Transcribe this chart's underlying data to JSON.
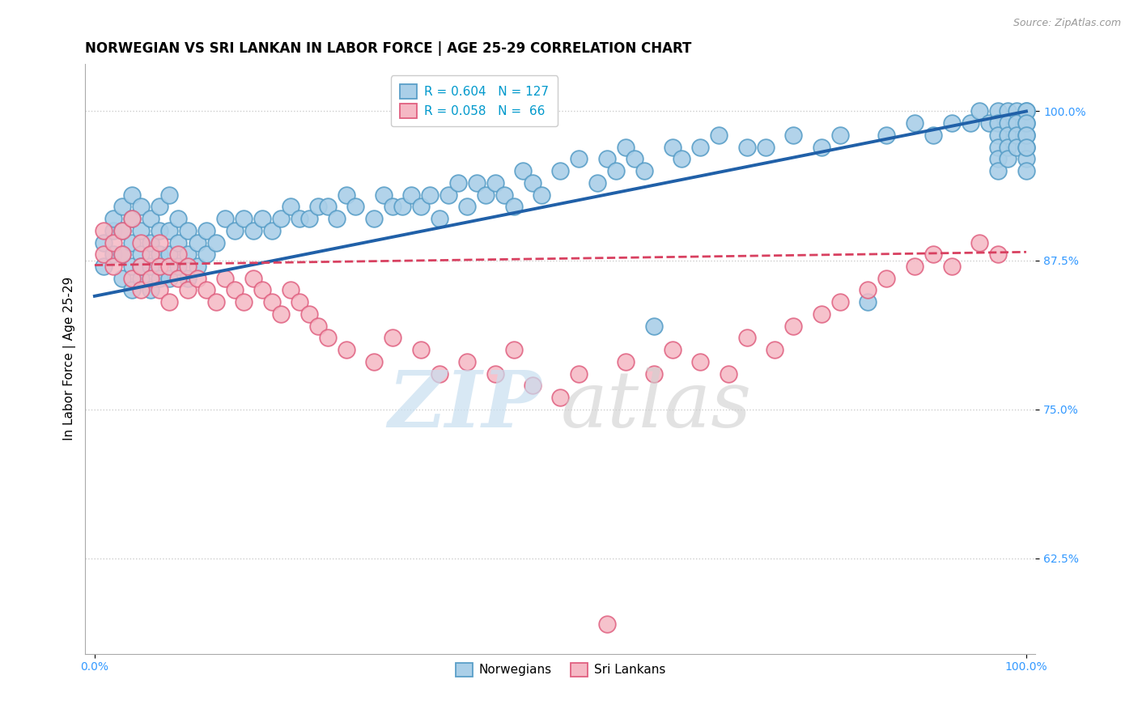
{
  "title": "NORWEGIAN VS SRI LANKAN IN LABOR FORCE | AGE 25-29 CORRELATION CHART",
  "source_text": "Source: ZipAtlas.com",
  "ylabel": "In Labor Force | Age 25-29",
  "xlim": [
    -0.01,
    1.01
  ],
  "ylim": [
    0.545,
    1.04
  ],
  "yticks": [
    0.625,
    0.75,
    0.875,
    1.0
  ],
  "ytick_labels": [
    "62.5%",
    "75.0%",
    "87.5%",
    "100.0%"
  ],
  "xticks": [
    0.0,
    1.0
  ],
  "xtick_labels": [
    "0.0%",
    "100.0%"
  ],
  "bottom_legend_labels": [
    "Norwegians",
    "Sri Lankans"
  ],
  "blue_R": "0.604",
  "blue_N": "127",
  "pink_R": "0.058",
  "pink_N": "66",
  "blue_color": "#aacfe8",
  "blue_edge": "#5a9fc8",
  "pink_color": "#f5b8c4",
  "pink_edge": "#e06080",
  "blue_line_color": "#2060a8",
  "pink_line_color": "#d84060",
  "title_fontsize": 12,
  "axis_label_fontsize": 11,
  "tick_fontsize": 10,
  "blue_scatter_x": [
    0.01,
    0.01,
    0.02,
    0.02,
    0.02,
    0.03,
    0.03,
    0.03,
    0.03,
    0.04,
    0.04,
    0.04,
    0.04,
    0.04,
    0.05,
    0.05,
    0.05,
    0.05,
    0.05,
    0.06,
    0.06,
    0.06,
    0.06,
    0.07,
    0.07,
    0.07,
    0.07,
    0.08,
    0.08,
    0.08,
    0.08,
    0.09,
    0.09,
    0.09,
    0.1,
    0.1,
    0.1,
    0.11,
    0.11,
    0.12,
    0.12,
    0.13,
    0.14,
    0.15,
    0.16,
    0.17,
    0.18,
    0.19,
    0.2,
    0.21,
    0.22,
    0.23,
    0.24,
    0.25,
    0.26,
    0.27,
    0.28,
    0.3,
    0.31,
    0.32,
    0.33,
    0.34,
    0.35,
    0.36,
    0.37,
    0.38,
    0.39,
    0.4,
    0.41,
    0.42,
    0.43,
    0.44,
    0.45,
    0.46,
    0.47,
    0.48,
    0.5,
    0.52,
    0.54,
    0.55,
    0.56,
    0.57,
    0.58,
    0.59,
    0.6,
    0.62,
    0.63,
    0.65,
    0.67,
    0.7,
    0.72,
    0.75,
    0.78,
    0.8,
    0.83,
    0.85,
    0.88,
    0.9,
    0.92,
    0.94,
    0.95,
    0.96,
    0.97,
    0.97,
    0.97,
    0.97,
    0.97,
    0.97,
    0.98,
    0.98,
    0.98,
    0.98,
    0.98,
    0.99,
    0.99,
    0.99,
    0.99,
    1.0,
    1.0,
    1.0,
    1.0,
    1.0,
    1.0,
    1.0,
    1.0,
    1.0,
    1.0
  ],
  "blue_scatter_y": [
    0.89,
    0.87,
    0.88,
    0.9,
    0.91,
    0.86,
    0.88,
    0.9,
    0.92,
    0.85,
    0.87,
    0.89,
    0.91,
    0.93,
    0.86,
    0.88,
    0.9,
    0.92,
    0.87,
    0.85,
    0.87,
    0.89,
    0.91,
    0.86,
    0.88,
    0.9,
    0.92,
    0.86,
    0.88,
    0.9,
    0.93,
    0.87,
    0.89,
    0.91,
    0.86,
    0.88,
    0.9,
    0.87,
    0.89,
    0.88,
    0.9,
    0.89,
    0.91,
    0.9,
    0.91,
    0.9,
    0.91,
    0.9,
    0.91,
    0.92,
    0.91,
    0.91,
    0.92,
    0.92,
    0.91,
    0.93,
    0.92,
    0.91,
    0.93,
    0.92,
    0.92,
    0.93,
    0.92,
    0.93,
    0.91,
    0.93,
    0.94,
    0.92,
    0.94,
    0.93,
    0.94,
    0.93,
    0.92,
    0.95,
    0.94,
    0.93,
    0.95,
    0.96,
    0.94,
    0.96,
    0.95,
    0.97,
    0.96,
    0.95,
    0.82,
    0.97,
    0.96,
    0.97,
    0.98,
    0.97,
    0.97,
    0.98,
    0.97,
    0.98,
    0.84,
    0.98,
    0.99,
    0.98,
    0.99,
    0.99,
    1.0,
    0.99,
    1.0,
    0.99,
    0.98,
    0.97,
    0.96,
    0.95,
    1.0,
    0.99,
    0.98,
    0.97,
    0.96,
    1.0,
    0.99,
    0.98,
    0.97,
    1.0,
    0.99,
    0.98,
    0.97,
    0.96,
    0.95,
    1.0,
    0.99,
    0.98,
    0.97
  ],
  "pink_scatter_x": [
    0.01,
    0.01,
    0.02,
    0.02,
    0.03,
    0.03,
    0.04,
    0.04,
    0.05,
    0.05,
    0.05,
    0.06,
    0.06,
    0.07,
    0.07,
    0.07,
    0.08,
    0.08,
    0.09,
    0.09,
    0.1,
    0.1,
    0.11,
    0.12,
    0.13,
    0.14,
    0.15,
    0.16,
    0.17,
    0.18,
    0.19,
    0.2,
    0.21,
    0.22,
    0.23,
    0.24,
    0.25,
    0.27,
    0.3,
    0.32,
    0.35,
    0.37,
    0.4,
    0.43,
    0.45,
    0.47,
    0.5,
    0.52,
    0.55,
    0.57,
    0.6,
    0.62,
    0.65,
    0.68,
    0.7,
    0.73,
    0.75,
    0.78,
    0.8,
    0.83,
    0.85,
    0.88,
    0.9,
    0.92,
    0.95,
    0.97
  ],
  "pink_scatter_y": [
    0.88,
    0.9,
    0.87,
    0.89,
    0.88,
    0.9,
    0.86,
    0.91,
    0.85,
    0.87,
    0.89,
    0.86,
    0.88,
    0.85,
    0.87,
    0.89,
    0.84,
    0.87,
    0.86,
    0.88,
    0.85,
    0.87,
    0.86,
    0.85,
    0.84,
    0.86,
    0.85,
    0.84,
    0.86,
    0.85,
    0.84,
    0.83,
    0.85,
    0.84,
    0.83,
    0.82,
    0.81,
    0.8,
    0.79,
    0.81,
    0.8,
    0.78,
    0.79,
    0.78,
    0.8,
    0.77,
    0.76,
    0.78,
    0.57,
    0.79,
    0.78,
    0.8,
    0.79,
    0.78,
    0.81,
    0.8,
    0.82,
    0.83,
    0.84,
    0.85,
    0.86,
    0.87,
    0.88,
    0.87,
    0.89,
    0.88
  ],
  "blue_line_x0": 0.0,
  "blue_line_y0": 0.845,
  "blue_line_x1": 1.0,
  "blue_line_y1": 1.0,
  "pink_line_x0": 0.0,
  "pink_line_y0": 0.871,
  "pink_line_x1": 1.0,
  "pink_line_y1": 0.882
}
